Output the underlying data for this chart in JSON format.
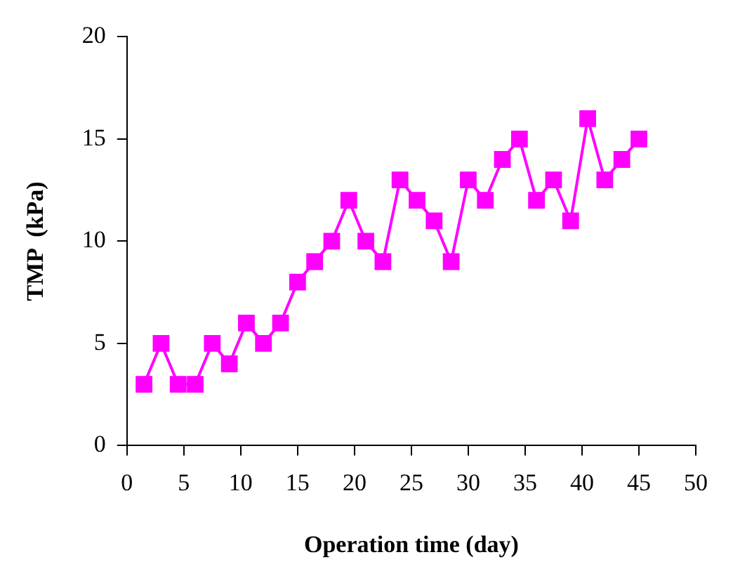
{
  "chart_data": {
    "type": "line",
    "xlabel": "Operation time (day)",
    "ylabel": "TMP  (kPa)",
    "x": [
      1.5,
      3,
      4.5,
      6,
      7.5,
      9,
      10.5,
      12,
      13.5,
      15,
      16.5,
      18,
      19.5,
      21,
      22.5,
      24,
      25.5,
      27,
      28.5,
      30,
      31.5,
      33,
      34.5,
      36,
      37.5,
      39,
      40.5,
      42,
      43.5,
      45
    ],
    "series": [
      {
        "color": "#ff00ff",
        "values": [
          3,
          5,
          3,
          3,
          5,
          4,
          6,
          5,
          6,
          8,
          9,
          10,
          12,
          10,
          9,
          13,
          12,
          11,
          9,
          13,
          12,
          14,
          15,
          12,
          13,
          11,
          16,
          13,
          14,
          15
        ]
      }
    ],
    "xlim": [
      0,
      50
    ],
    "xticks": [
      0,
      5,
      10,
      15,
      20,
      25,
      30,
      35,
      40,
      45,
      50
    ],
    "ylim": [
      0,
      20
    ],
    "yticks": [
      0,
      5,
      10,
      15,
      20
    ],
    "grid": false,
    "legend": false,
    "marker": "square",
    "line_style": "solid"
  }
}
